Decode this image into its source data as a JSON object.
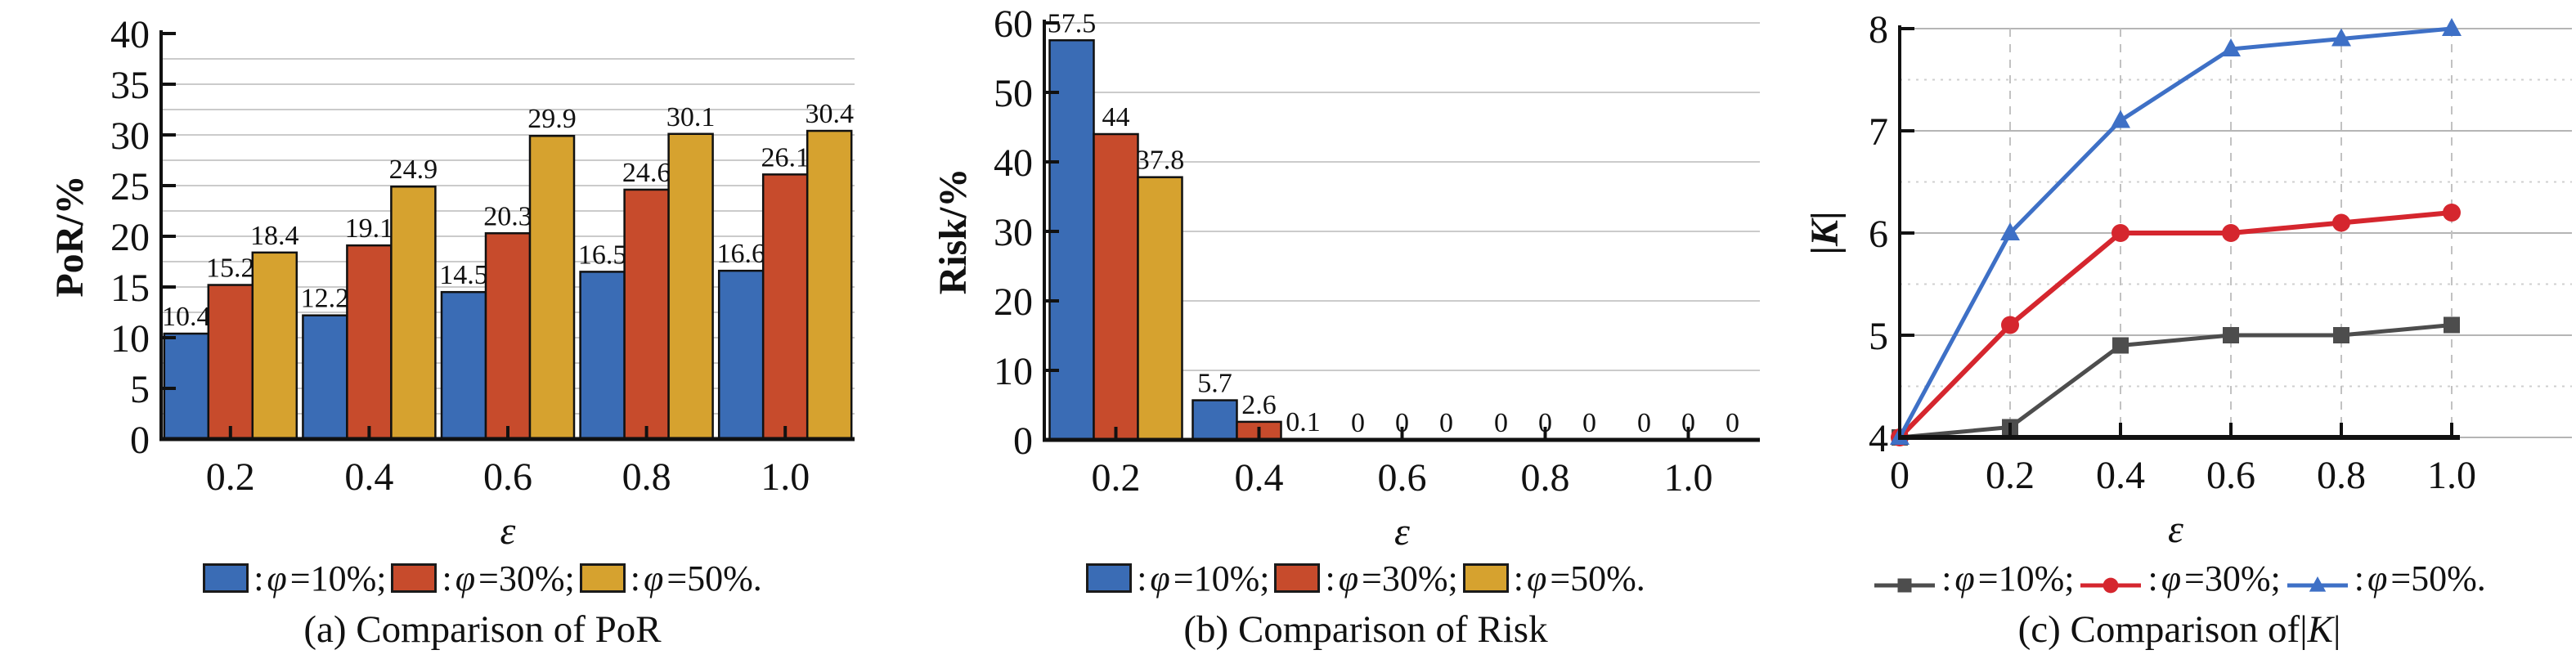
{
  "figure": {
    "charts": [
      {
        "type": "bar",
        "caption": {
          "pre": "(a) Comparison of PoR",
          "bar1": "",
          "k": "",
          "bar2": ""
        },
        "ylabel": {
          "text": "PoR/%"
        },
        "xlabel": "ε",
        "ylim": [
          0,
          40
        ],
        "yticks": [
          "0",
          "5",
          "10",
          "15",
          "20",
          "25",
          "30",
          "35",
          "40"
        ],
        "ytick_values": [
          0,
          5,
          10,
          15,
          20,
          25,
          30,
          35,
          40
        ],
        "grid_values": [
          2.5,
          5,
          7.5,
          10,
          12.5,
          15,
          17.5,
          20,
          22.5,
          25,
          27.5,
          30,
          32.5,
          35,
          37.5
        ],
        "categories": [
          "0.2",
          "0.4",
          "0.6",
          "0.8",
          "1.0"
        ],
        "series": [
          {
            "name": "φ=10%",
            "color": "#3a6cb5",
            "values": [
              10.4,
              12.2,
              14.5,
              16.5,
              16.6
            ],
            "labels": [
              "10.4",
              "12.2",
              "14.5",
              "16.5",
              "16.6"
            ]
          },
          {
            "name": "φ=30%",
            "color": "#c74b2c",
            "values": [
              15.2,
              19.1,
              20.3,
              24.6,
              26.1
            ],
            "labels": [
              "15.2",
              "19.1",
              "20.3",
              "24.6",
              "26.1"
            ]
          },
          {
            "name": "φ=50%",
            "color": "#d6a22f",
            "values": [
              18.4,
              24.9,
              29.9,
              30.1,
              30.4
            ],
            "labels": [
              "18.4",
              "24.9",
              "29.9",
              "30.1",
              "30.4"
            ]
          }
        ],
        "legend": [
          {
            "pre": ": ",
            "sym": "φ",
            "rest": "=10%;"
          },
          {
            "pre": ": ",
            "sym": "φ",
            "rest": "=30%;"
          },
          {
            "pre": ": ",
            "sym": "φ",
            "rest": "=50%."
          }
        ]
      },
      {
        "type": "bar",
        "caption": {
          "pre": "(b) Comparison of Risk",
          "bar1": "",
          "k": "",
          "bar2": ""
        },
        "ylabel": {
          "text": "Risk/%"
        },
        "xlabel": "ε",
        "ylim": [
          0,
          60
        ],
        "yticks": [
          "0",
          "10",
          "20",
          "30",
          "40",
          "50",
          "60"
        ],
        "ytick_values": [
          0,
          10,
          20,
          30,
          40,
          50,
          60
        ],
        "grid_values": [
          10,
          20,
          30,
          40,
          50,
          60
        ],
        "categories": [
          "0.2",
          "0.4",
          "0.6",
          "0.8",
          "1.0"
        ],
        "series": [
          {
            "name": "φ=10%",
            "color": "#3a6cb5",
            "values": [
              57.5,
              5.7,
              0,
              0,
              0
            ],
            "labels": [
              "57.5",
              "5.7",
              "0",
              "0",
              "0"
            ]
          },
          {
            "name": "φ=30%",
            "color": "#c74b2c",
            "values": [
              44,
              2.6,
              0,
              0,
              0
            ],
            "labels": [
              "44",
              "2.6",
              "0",
              "0",
              "0"
            ]
          },
          {
            "name": "φ=50%",
            "color": "#d6a22f",
            "values": [
              37.8,
              0.1,
              0,
              0,
              0
            ],
            "labels": [
              "37.8",
              "0.1",
              "0",
              "0",
              "0"
            ]
          }
        ],
        "legend": [
          {
            "pre": ": ",
            "sym": "φ",
            "rest": "=10%;"
          },
          {
            "pre": ": ",
            "sym": "φ",
            "rest": "=30%;"
          },
          {
            "pre": ": ",
            "sym": "φ",
            "rest": "=50%."
          }
        ]
      },
      {
        "type": "line",
        "caption": {
          "pre": "(c) Comparison of ",
          "bar1": "|",
          "k": "K",
          "bar2": "|"
        },
        "ylabel": {
          "bar1": "|",
          "k": "K",
          "bar2": "|"
        },
        "xlabel": "ε",
        "ylim": [
          4,
          8
        ],
        "yticks": [
          "4",
          "5",
          "6",
          "7",
          "8"
        ],
        "ytick_values": [
          4,
          5,
          6,
          7,
          8
        ],
        "solid_grid": [
          5,
          6,
          7,
          8
        ],
        "dotted_grid": [
          4.5,
          5.5,
          6.5,
          7.5
        ],
        "xticks": [
          "0",
          "0.2",
          "0.4",
          "0.6",
          "0.8",
          "1.0"
        ],
        "xtick_values": [
          0,
          0.2,
          0.4,
          0.6,
          0.8,
          1.0
        ],
        "series": [
          {
            "name": "φ=10%",
            "color": "#4d4d4d",
            "marker": "square",
            "lw": 5,
            "values": [
              4,
              4.1,
              4.9,
              5,
              5,
              5.1
            ]
          },
          {
            "name": "φ=30%",
            "color": "#d5262e",
            "marker": "circle",
            "lw": 6,
            "values": [
              4,
              5.1,
              6,
              6,
              6.1,
              6.2
            ]
          },
          {
            "name": "φ=50%",
            "color": "#3e70c6",
            "marker": "triangle",
            "lw": 5,
            "values": [
              4,
              6,
              7.1,
              7.8,
              7.9,
              8
            ]
          }
        ],
        "legend": [
          {
            "pre": ": ",
            "sym": "φ",
            "rest": "=10%;"
          },
          {
            "pre": ": ",
            "sym": "φ",
            "rest": "=30%;"
          },
          {
            "pre": ": ",
            "sym": "φ",
            "rest": "=50%."
          }
        ]
      }
    ],
    "style_colors": {
      "axis": "#111111",
      "bar_grid": "#cbcbcb",
      "solid_grid_c": "#b5b5b5",
      "dotted_grid_c": "#cfcfcf",
      "dashed_vgrid_c": "#c2c2c2",
      "text": "#111111"
    }
  }
}
